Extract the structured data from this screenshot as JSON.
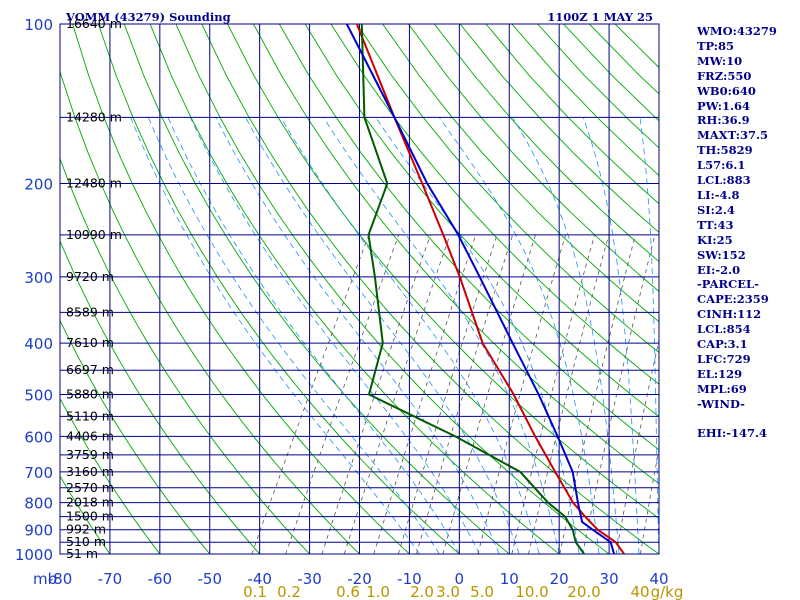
{
  "header": {
    "title": "VOMM (43279) Sounding",
    "time": "1100Z  1 MAY 25"
  },
  "sidebar": {
    "lines": [
      "WMO:43279",
      "TP:85",
      "MW:10",
      "FRZ:550",
      "WB0:640",
      "PW:1.64",
      "RH:36.9",
      "MAXT:37.5",
      "TH:5829",
      "L57:6.1",
      "LCL:883",
      "LI:-4.8",
      "SI:2.4",
      "TT:43",
      "KI:25",
      "SW:152",
      "EI:-2.0",
      "-PARCEL-",
      "CAPE:2359",
      "CINH:112",
      "LCL:854",
      "CAP:3.1",
      "LFC:729",
      "EL:129",
      "MPL:69",
      "-WIND-"
    ],
    "ehi": "EHI:-147.4"
  },
  "colors": {
    "frame": "#00008b",
    "dry_adiabat": "#00aa00",
    "moist_adiabat": "#1e90ff",
    "mixing_ratio": "#555555",
    "temperature": "#cc0000",
    "dewpoint": "#005a00",
    "parcel": "#0000cc",
    "tick_text": "#1e3cc8",
    "mixing_text": "#b89600"
  },
  "chart_data": {
    "type": "line",
    "title": "VOMM (43279) Sounding",
    "y_axis": {
      "unit_label": "mb",
      "pressure_ticks": [
        100,
        200,
        300,
        400,
        500,
        600,
        700,
        800,
        900,
        1000
      ],
      "range": [
        100,
        1000
      ],
      "scale": "log"
    },
    "x_axis": {
      "temperature_ticks": [
        -80,
        -70,
        -60,
        -50,
        -40,
        -30,
        -20,
        -10,
        0,
        10,
        20,
        30,
        40
      ],
      "range": [
        -80,
        40
      ]
    },
    "height_labels": [
      {
        "p": 100,
        "label": "16640 m"
      },
      {
        "p": 150,
        "label": "14280 m"
      },
      {
        "p": 200,
        "label": "12480 m"
      },
      {
        "p": 250,
        "label": "10990 m"
      },
      {
        "p": 300,
        "label": "9720 m"
      },
      {
        "p": 350,
        "label": "8589 m"
      },
      {
        "p": 400,
        "label": "7610 m"
      },
      {
        "p": 450,
        "label": "6697 m"
      },
      {
        "p": 500,
        "label": "5880 m"
      },
      {
        "p": 550,
        "label": "5110 m"
      },
      {
        "p": 600,
        "label": "4406 m"
      },
      {
        "p": 650,
        "label": "3759 m"
      },
      {
        "p": 700,
        "label": "3160 m"
      },
      {
        "p": 750,
        "label": "2570 m"
      },
      {
        "p": 800,
        "label": "2018 m"
      },
      {
        "p": 850,
        "label": "1500 m"
      },
      {
        "p": 900,
        "label": "992 m"
      },
      {
        "p": 950,
        "label": "510 m"
      },
      {
        "p": 1000,
        "label": "51 m"
      }
    ],
    "mixing_ratio_labels": [
      "0.1",
      "0.2",
      "0.6",
      "1.0",
      "2.0",
      "3.0",
      "5.0",
      "10.0",
      "20.0",
      "40",
      "g/kg"
    ],
    "series": [
      {
        "key": "temperature",
        "points": [
          [
            1000,
            33
          ],
          [
            950,
            30
          ],
          [
            900,
            25
          ],
          [
            850,
            21
          ],
          [
            800,
            17
          ],
          [
            700,
            10
          ],
          [
            600,
            2
          ],
          [
            500,
            -7
          ],
          [
            400,
            -19
          ],
          [
            300,
            -31
          ],
          [
            250,
            -39
          ],
          [
            200,
            -49
          ],
          [
            150,
            -62
          ],
          [
            100,
            -80
          ]
        ]
      },
      {
        "key": "dewpoint",
        "points": [
          [
            1000,
            25
          ],
          [
            950,
            22
          ],
          [
            900,
            20
          ],
          [
            850,
            17
          ],
          [
            800,
            12
          ],
          [
            700,
            3
          ],
          [
            600,
            -14
          ],
          [
            500,
            -36
          ],
          [
            400,
            -39
          ],
          [
            300,
            -48
          ],
          [
            250,
            -54
          ],
          [
            200,
            -56
          ],
          [
            150,
            -68
          ],
          [
            100,
            -79
          ]
        ]
      },
      {
        "key": "parcel",
        "points": [
          [
            1000,
            31
          ],
          [
            950,
            29
          ],
          [
            900,
            24
          ],
          [
            870,
            21
          ],
          [
            800,
            18
          ],
          [
            700,
            13.5
          ],
          [
            600,
            6.5
          ],
          [
            500,
            -2
          ],
          [
            400,
            -13
          ],
          [
            300,
            -27
          ],
          [
            250,
            -36
          ],
          [
            200,
            -48
          ],
          [
            150,
            -62
          ],
          [
            100,
            -82
          ]
        ]
      }
    ]
  }
}
